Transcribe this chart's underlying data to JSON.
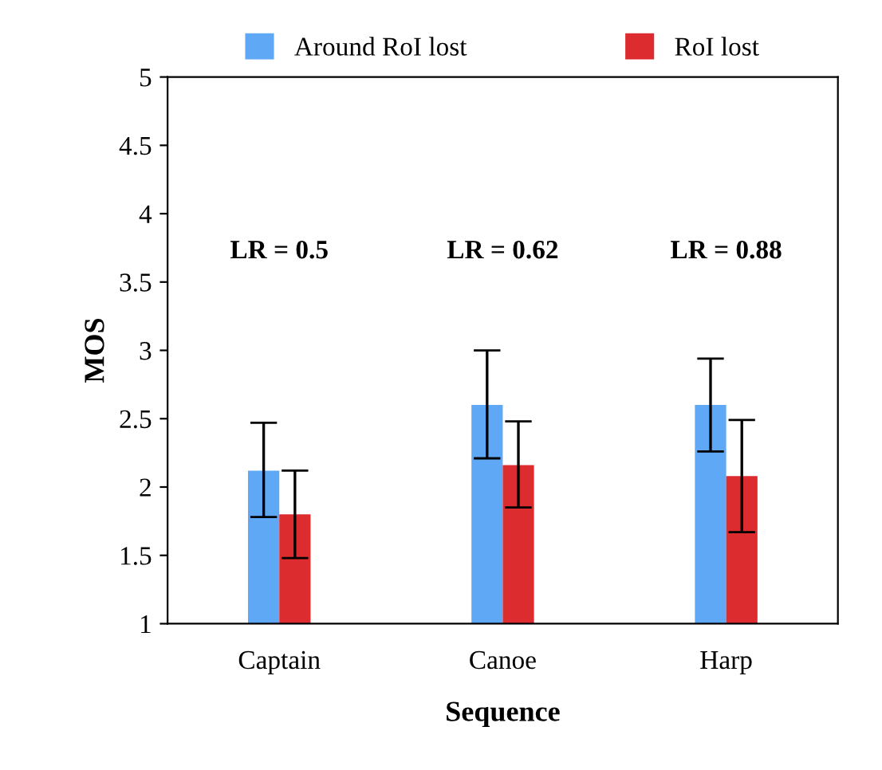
{
  "chart_data": {
    "type": "bar",
    "xlabel": "Sequence",
    "ylabel": "MOS",
    "categories": [
      "Captain",
      "Canoe",
      "Harp"
    ],
    "series": [
      {
        "name": "Around RoI lost",
        "color": "#5fa8f5",
        "values": [
          2.12,
          2.6,
          2.6
        ],
        "errors": [
          [
            1.78,
            2.47
          ],
          [
            2.21,
            3.0
          ],
          [
            2.26,
            2.94
          ]
        ]
      },
      {
        "name": "RoI lost",
        "color": "#dc2c30",
        "values": [
          1.8,
          2.16,
          2.08
        ],
        "errors": [
          [
            1.48,
            2.12
          ],
          [
            1.85,
            2.48
          ],
          [
            1.67,
            2.49
          ]
        ]
      }
    ],
    "annotations": [
      "LR = 0.5",
      "LR = 0.62",
      "LR = 0.88"
    ],
    "ylim": [
      1,
      5
    ],
    "yticks": [
      1,
      1.5,
      2,
      2.5,
      3,
      3.5,
      4,
      4.5,
      5
    ],
    "grid": false,
    "legend": "top"
  }
}
